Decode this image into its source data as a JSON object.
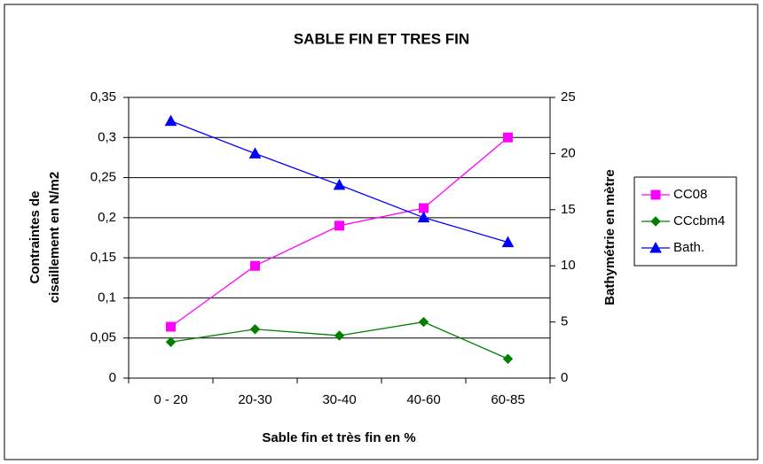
{
  "chart_data": {
    "type": "line",
    "title": "SABLE FIN ET TRES FIN",
    "x_label": "Sable fin et très fin en %",
    "y_label": [
      "Contraintes de",
      "cisaillement en N/m2"
    ],
    "y2_label": "Bathymétrie en mètre",
    "categories": [
      "0 - 20",
      "20-30",
      "30-40",
      "40-60",
      "60-85"
    ],
    "series": [
      {
        "name": "CC08",
        "color": "#ff00ff",
        "marker": "square",
        "values": [
          0.064,
          0.14,
          0.19,
          0.212,
          0.3
        ]
      },
      {
        "name": "CCcbm4",
        "color": "#008000",
        "marker": "diamond",
        "values": [
          0.045,
          0.061,
          0.053,
          0.07,
          0.024
        ]
      },
      {
        "name": "Bath.",
        "color": "#0000ff",
        "marker": "triangle",
        "axis": "y2",
        "values": [
          22.9,
          20.0,
          17.2,
          14.3,
          12.1
        ]
      }
    ],
    "ylim": [
      0,
      0.35
    ],
    "yticks": [
      0,
      {
        "value": 0.05,
        "label": "0,05"
      },
      {
        "value": 0.1,
        "label": "0,1"
      },
      {
        "value": 0.15,
        "label": "0,15"
      },
      {
        "value": 0.2,
        "label": "0,2"
      },
      {
        "value": 0.25,
        "label": "0,25"
      },
      {
        "value": 0.3,
        "label": "0,3"
      },
      {
        "value": 0.35,
        "label": "0,35"
      }
    ],
    "y2lim": [
      0,
      25
    ],
    "y2ticks": [
      0,
      5,
      10,
      15,
      20,
      25
    ],
    "grid": true,
    "legend": "right"
  }
}
